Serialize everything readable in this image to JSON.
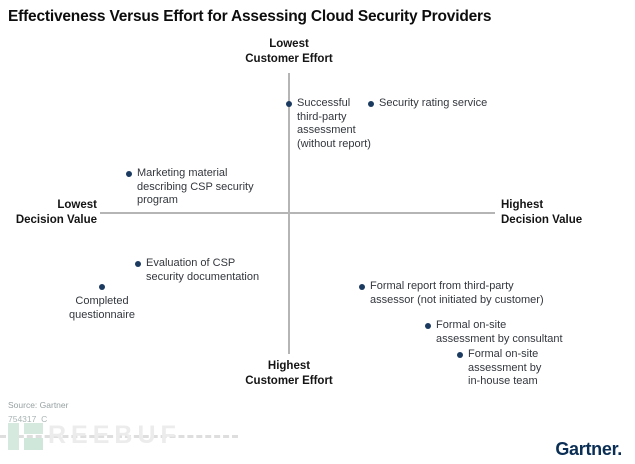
{
  "title": "Effectiveness Versus Effort for Assessing Cloud Security Providers",
  "axes": {
    "top": "Lowest\nCustomer Effort",
    "bottom": "Highest\nCustomer Effort",
    "left": "Lowest\nDecision Value",
    "right": "Highest\nDecision Value"
  },
  "chart_data": {
    "type": "scatter",
    "title": "Effectiveness Versus Effort for Assessing Cloud Security Providers",
    "xlabel": "Decision Value (Lowest at left to Highest at right)",
    "ylabel": "Customer Effort (Lowest at top to Highest at bottom)",
    "x_range": [
      0,
      100
    ],
    "y_range": [
      0,
      100
    ],
    "layout": "quadrant with gray cross axes, no grid, navy labeled dots",
    "points": [
      {
        "label": "Successful third-party assessment (without report)",
        "display_label": "Successful\nthird-party\nassessment\n(without report)",
        "x": 48,
        "y": 10
      },
      {
        "label": "Security rating service",
        "display_label": "Security rating service",
        "x": 68,
        "y": 10
      },
      {
        "label": "Marketing material describing CSP security program",
        "display_label": "Marketing material\ndescribing CSP security\nprogram",
        "x": 7,
        "y": 36
      },
      {
        "label": "Evaluation of CSP security documentation",
        "display_label": "Evaluation of CSP\nsecurity documentation",
        "x": 10,
        "y": 68
      },
      {
        "label": "Completed questionnaire",
        "display_label": "Completed\nquestionnaire",
        "x": 1,
        "y": 77
      },
      {
        "label": "Formal report from third-party assessor (not initiated by customer)",
        "display_label": "Formal report from third-party\nassessor (not initiated by customer)",
        "x": 66,
        "y": 76
      },
      {
        "label": "Formal on-site assessment by consultant",
        "display_label": "Formal on-site\nassessment by consultant",
        "x": 83,
        "y": 91
      },
      {
        "label": "Formal on-site assessment by in-house team",
        "display_label": "Formal on-site\nassessment by\nin-house team",
        "x": 91,
        "y": 100
      }
    ]
  },
  "footer": {
    "source": "Source: Gartner",
    "figure_id": "754317_C",
    "watermark_text": "REEBUF",
    "brand_logo": "Gartner."
  },
  "colors": {
    "dot": "#1b3a60",
    "label_text": "#33373d",
    "axis_line": "#b5b5b5",
    "gartner_navy": "#0b2e55",
    "watermark_green": "#d5e9de",
    "watermark_gray": "#ececec"
  }
}
